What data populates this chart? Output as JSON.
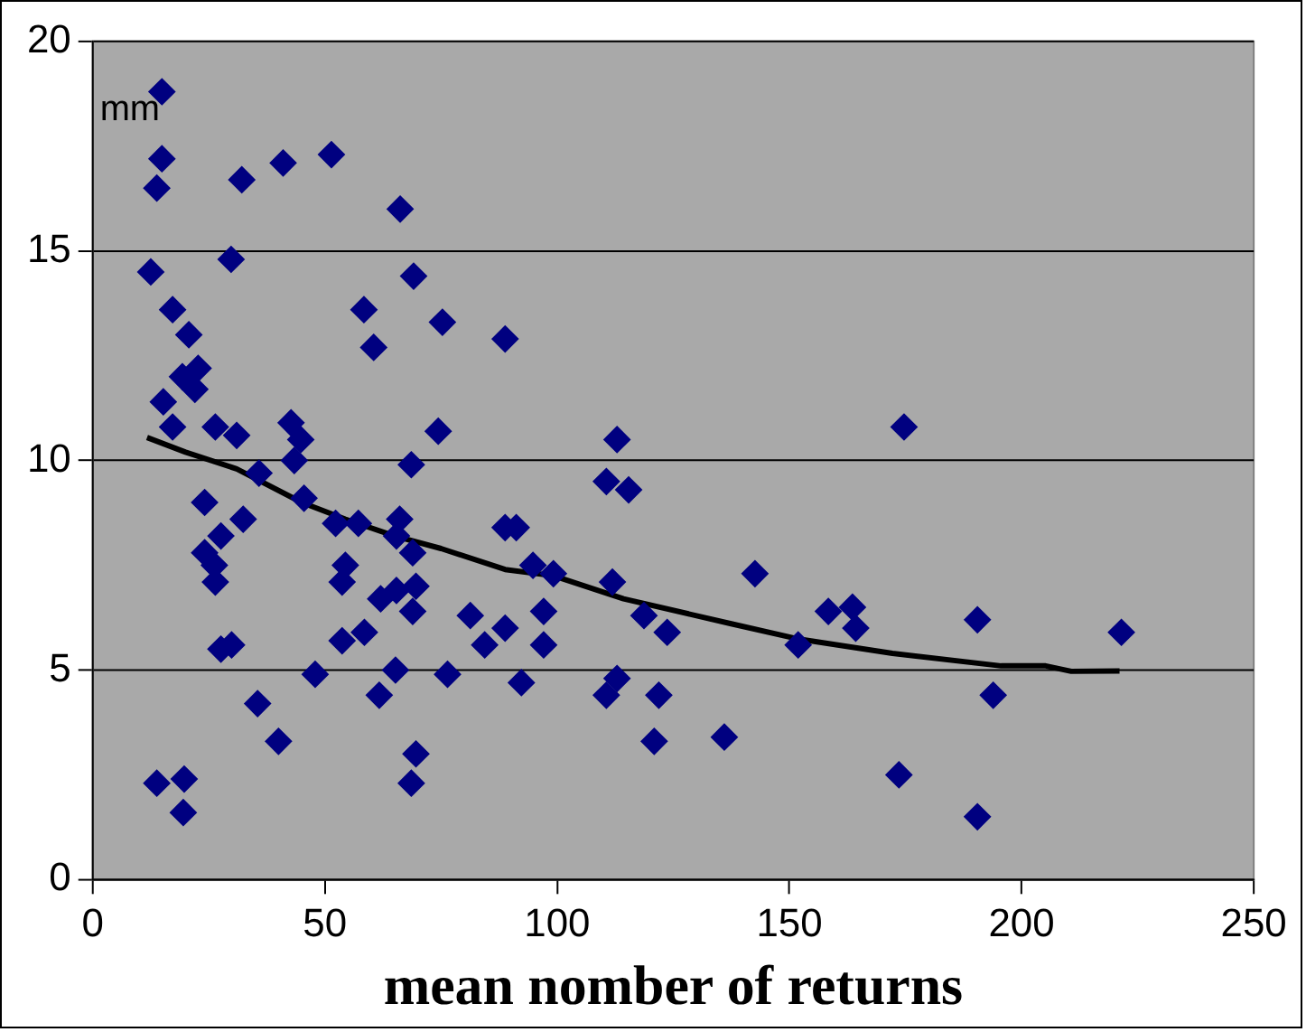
{
  "chart_data": {
    "type": "scatter",
    "xlabel": "mean nomber of returns",
    "ylabel": "mm",
    "xlim": [
      0,
      250
    ],
    "xticks": [
      0,
      50,
      100,
      150,
      200,
      250
    ],
    "ylim": [
      0,
      20
    ],
    "yticks": [
      0,
      5,
      10,
      15,
      20
    ],
    "grid": "y",
    "legend": false,
    "series": [
      {
        "type": "scatter",
        "marker": "diamond",
        "color": "#000080",
        "x": [
          14.9,
          14.9,
          13.8,
          32.1,
          41.0,
          51.4,
          66.2,
          12.5,
          29.8,
          69.1,
          58.4,
          60.5,
          75.3,
          88.8,
          17.2,
          20.7,
          22.7,
          19.3,
          22.0,
          15.2,
          17.2,
          26.4,
          31.0,
          42.7,
          44.8,
          43.4,
          35.8,
          74.4,
          68.6,
          45.5,
          24.1,
          32.4,
          27.6,
          24.1,
          26.2,
          26.4,
          52.3,
          57.2,
          66.1,
          65.4,
          68.9,
          88.8,
          91.2,
          54.4,
          53.7,
          62.0,
          65.4,
          69.6,
          68.9,
          81.3,
          84.4,
          88.8,
          53.7,
          58.5,
          27.6,
          29.9,
          47.9,
          65.2,
          76.4,
          61.7,
          35.5,
          40.0,
          69.6,
          68.6,
          13.8,
          19.7,
          19.5,
          112.9,
          110.6,
          115.4,
          174.7,
          94.8,
          99.2,
          97.1,
          97.1,
          92.3,
          111.9,
          118.7,
          123.7,
          112.9,
          110.6,
          121.9,
          120.9,
          136.0,
          142.6,
          151.9,
          158.4,
          163.6,
          164.3,
          173.6,
          190.5,
          193.9,
          190.5,
          221.5
        ],
        "values": [
          18.8,
          17.2,
          16.5,
          16.7,
          17.1,
          17.3,
          16.0,
          14.5,
          14.8,
          14.4,
          13.6,
          12.7,
          13.3,
          12.9,
          13.6,
          13.0,
          12.2,
          12.0,
          11.7,
          11.4,
          10.8,
          10.8,
          10.6,
          10.9,
          10.5,
          10.0,
          9.7,
          10.7,
          9.9,
          9.1,
          9.0,
          8.6,
          8.2,
          7.8,
          7.5,
          7.1,
          8.5,
          8.5,
          8.6,
          8.2,
          7.8,
          8.4,
          8.4,
          7.5,
          7.1,
          6.7,
          6.9,
          7.0,
          6.4,
          6.3,
          5.6,
          6.0,
          5.7,
          5.9,
          5.5,
          5.6,
          4.9,
          5.0,
          4.9,
          4.4,
          4.2,
          3.3,
          3.0,
          2.3,
          2.3,
          2.4,
          1.6,
          10.5,
          9.5,
          9.3,
          10.8,
          7.5,
          7.3,
          6.4,
          5.6,
          4.7,
          7.1,
          6.3,
          5.9,
          4.8,
          4.4,
          4.4,
          3.3,
          3.4,
          7.3,
          5.6,
          6.4,
          6.5,
          6.0,
          2.5,
          6.2,
          4.4,
          1.5,
          5.9
        ]
      },
      {
        "type": "line",
        "marker": "none",
        "color": "#000000",
        "x": [
          11.7,
          20,
          31,
          45,
          54.4,
          65,
          75,
          88.8,
          99.2,
          114.3,
          137.7,
          151.5,
          172.2,
          195.6,
          205.2,
          210.7,
          221.1
        ],
        "values": [
          10.55,
          10.2,
          9.8,
          9.0,
          8.6,
          8.2,
          7.9,
          7.4,
          7.25,
          6.7,
          6.1,
          5.75,
          5.4,
          5.1,
          5.1,
          4.97,
          4.98
        ]
      }
    ]
  }
}
